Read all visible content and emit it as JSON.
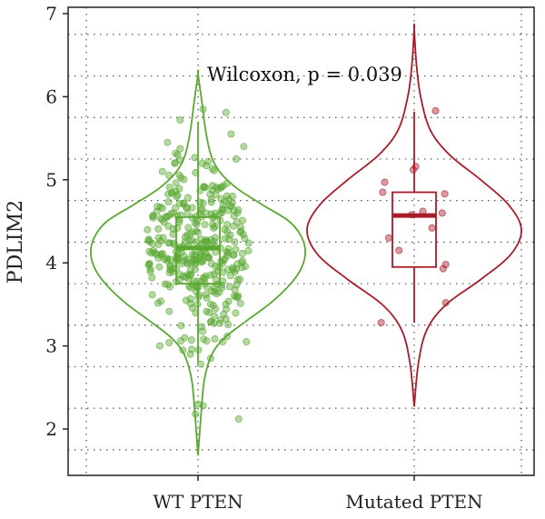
{
  "chart_data": {
    "type": "violin",
    "title": "",
    "xlabel": "",
    "ylabel": "PDLIM2",
    "ylim": [
      1.5,
      7.0
    ],
    "yticks": [
      2,
      3,
      4,
      5,
      6,
      7
    ],
    "grid": "dotted",
    "annotation": "Wilcoxon, p = 0.039",
    "categories": [
      "WT PTEN",
      "Mutated PTEN"
    ],
    "groups": [
      {
        "category": "WT PTEN",
        "color": "#5aa832",
        "box": {
          "q1": 3.75,
          "median": 4.18,
          "q3": 4.55,
          "whisker_low": 2.8,
          "whisker_high": 5.7
        },
        "violin_range": [
          1.68,
          6.27
        ],
        "density": [
          [
            1.68,
            0.0
          ],
          [
            2.2,
            0.03
          ],
          [
            2.6,
            0.06
          ],
          [
            2.9,
            0.13
          ],
          [
            3.1,
            0.25
          ],
          [
            3.3,
            0.45
          ],
          [
            3.5,
            0.66
          ],
          [
            3.7,
            0.83
          ],
          [
            3.9,
            0.95
          ],
          [
            4.1,
            1.0
          ],
          [
            4.3,
            0.97
          ],
          [
            4.5,
            0.85
          ],
          [
            4.7,
            0.6
          ],
          [
            4.9,
            0.36
          ],
          [
            5.1,
            0.2
          ],
          [
            5.3,
            0.12
          ],
          [
            5.6,
            0.07
          ],
          [
            5.9,
            0.04
          ],
          [
            6.27,
            0.0
          ]
        ],
        "points": [
          [
            5.85,
            0.1
          ],
          [
            5.81,
            0.55
          ],
          [
            5.72,
            -0.35
          ],
          [
            5.55,
            0.65
          ],
          [
            5.4,
            0.9
          ],
          [
            5.3,
            -0.4
          ],
          [
            5.25,
            0.75
          ],
          [
            5.22,
            0.2
          ],
          [
            2.95,
            -0.3
          ],
          [
            2.9,
            -0.15
          ],
          [
            2.85,
            0.25
          ],
          [
            2.78,
            0.05
          ],
          [
            2.3,
            0.0
          ],
          [
            2.28,
            0.1
          ],
          [
            2.18,
            -0.05
          ],
          [
            2.12,
            0.8
          ],
          [
            3.05,
            0.95
          ],
          [
            3.0,
            -0.75
          ],
          [
            5.45,
            -0.6
          ],
          [
            5.1,
            -0.7
          ]
        ]
      },
      {
        "category": "Mutated PTEN",
        "color": "#a81c2a",
        "box": {
          "q1": 3.95,
          "median": 4.57,
          "q3": 4.85,
          "whisker_low": 3.28,
          "whisker_high": 5.82
        },
        "violin_range": [
          2.27,
          6.82
        ],
        "density": [
          [
            2.27,
            0.0
          ],
          [
            2.8,
            0.04
          ],
          [
            3.2,
            0.12
          ],
          [
            3.5,
            0.3
          ],
          [
            3.8,
            0.62
          ],
          [
            4.1,
            0.9
          ],
          [
            4.4,
            1.0
          ],
          [
            4.7,
            0.88
          ],
          [
            5.0,
            0.62
          ],
          [
            5.3,
            0.33
          ],
          [
            5.6,
            0.15
          ],
          [
            6.0,
            0.06
          ],
          [
            6.4,
            0.02
          ],
          [
            6.82,
            0.0
          ]
        ],
        "points": [
          [
            5.83,
            0.42
          ],
          [
            5.16,
            0.03
          ],
          [
            5.12,
            -0.02
          ],
          [
            4.97,
            -0.58
          ],
          [
            4.85,
            -0.62
          ],
          [
            4.83,
            0.6
          ],
          [
            4.62,
            0.17
          ],
          [
            4.6,
            0.55
          ],
          [
            4.58,
            -0.05
          ],
          [
            4.42,
            0.35
          ],
          [
            4.3,
            -0.5
          ],
          [
            4.15,
            -0.3
          ],
          [
            3.98,
            0.62
          ],
          [
            3.93,
            0.57
          ],
          [
            3.52,
            0.62
          ],
          [
            3.28,
            -0.65
          ]
        ]
      }
    ]
  }
}
